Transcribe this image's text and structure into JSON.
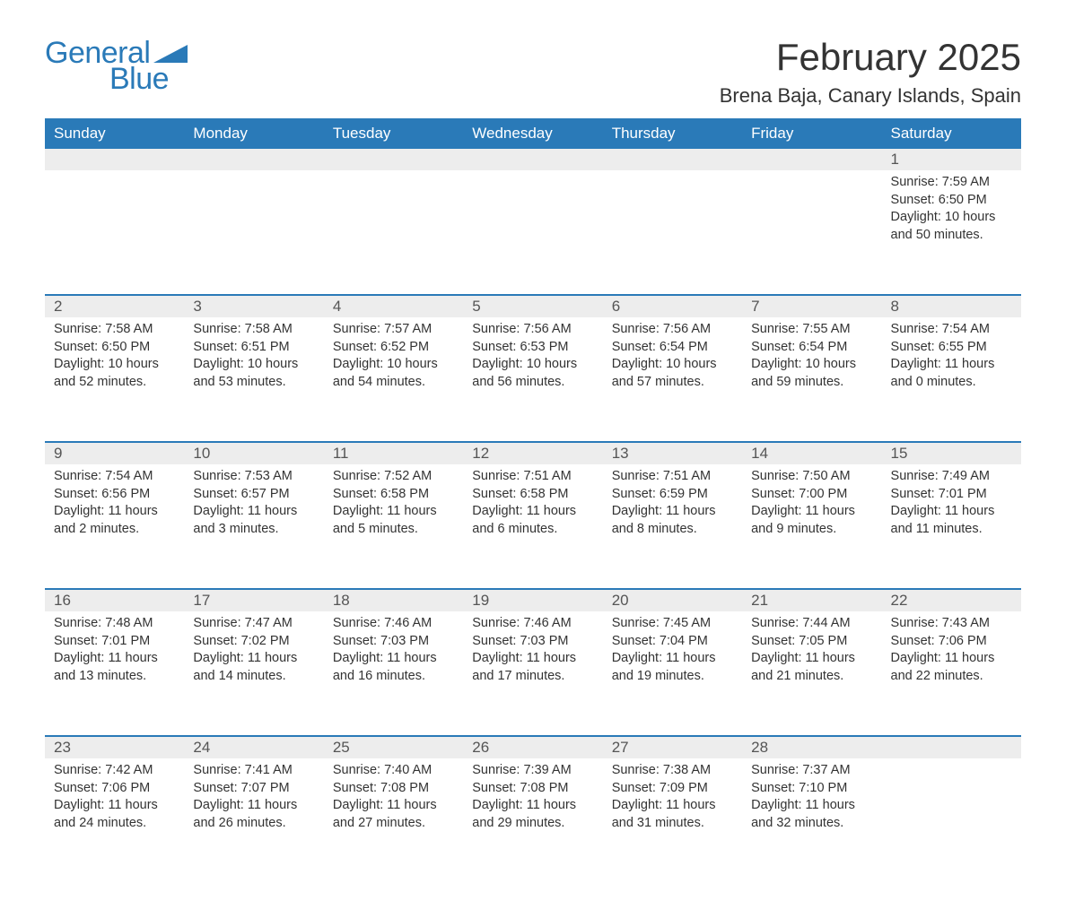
{
  "logo": {
    "word1": "General",
    "word2": "Blue",
    "wedge_color": "#2a7ab8"
  },
  "header": {
    "month_title": "February 2025",
    "location": "Brena Baja, Canary Islands, Spain"
  },
  "colors": {
    "header_bg": "#2a7ab8",
    "header_text": "#ffffff",
    "daynum_bg": "#ededed",
    "body_text": "#333333",
    "page_bg": "#ffffff"
  },
  "fonts": {
    "title_size_pt": 32,
    "location_size_pt": 17,
    "header_cell_size_pt": 13,
    "body_size_pt": 11
  },
  "weekdays": [
    "Sunday",
    "Monday",
    "Tuesday",
    "Wednesday",
    "Thursday",
    "Friday",
    "Saturday"
  ],
  "weeks": [
    [
      null,
      null,
      null,
      null,
      null,
      null,
      {
        "n": "1",
        "sunrise": "Sunrise: 7:59 AM",
        "sunset": "Sunset: 6:50 PM",
        "daylight": "Daylight: 10 hours and 50 minutes."
      }
    ],
    [
      {
        "n": "2",
        "sunrise": "Sunrise: 7:58 AM",
        "sunset": "Sunset: 6:50 PM",
        "daylight": "Daylight: 10 hours and 52 minutes."
      },
      {
        "n": "3",
        "sunrise": "Sunrise: 7:58 AM",
        "sunset": "Sunset: 6:51 PM",
        "daylight": "Daylight: 10 hours and 53 minutes."
      },
      {
        "n": "4",
        "sunrise": "Sunrise: 7:57 AM",
        "sunset": "Sunset: 6:52 PM",
        "daylight": "Daylight: 10 hours and 54 minutes."
      },
      {
        "n": "5",
        "sunrise": "Sunrise: 7:56 AM",
        "sunset": "Sunset: 6:53 PM",
        "daylight": "Daylight: 10 hours and 56 minutes."
      },
      {
        "n": "6",
        "sunrise": "Sunrise: 7:56 AM",
        "sunset": "Sunset: 6:54 PM",
        "daylight": "Daylight: 10 hours and 57 minutes."
      },
      {
        "n": "7",
        "sunrise": "Sunrise: 7:55 AM",
        "sunset": "Sunset: 6:54 PM",
        "daylight": "Daylight: 10 hours and 59 minutes."
      },
      {
        "n": "8",
        "sunrise": "Sunrise: 7:54 AM",
        "sunset": "Sunset: 6:55 PM",
        "daylight": "Daylight: 11 hours and 0 minutes."
      }
    ],
    [
      {
        "n": "9",
        "sunrise": "Sunrise: 7:54 AM",
        "sunset": "Sunset: 6:56 PM",
        "daylight": "Daylight: 11 hours and 2 minutes."
      },
      {
        "n": "10",
        "sunrise": "Sunrise: 7:53 AM",
        "sunset": "Sunset: 6:57 PM",
        "daylight": "Daylight: 11 hours and 3 minutes."
      },
      {
        "n": "11",
        "sunrise": "Sunrise: 7:52 AM",
        "sunset": "Sunset: 6:58 PM",
        "daylight": "Daylight: 11 hours and 5 minutes."
      },
      {
        "n": "12",
        "sunrise": "Sunrise: 7:51 AM",
        "sunset": "Sunset: 6:58 PM",
        "daylight": "Daylight: 11 hours and 6 minutes."
      },
      {
        "n": "13",
        "sunrise": "Sunrise: 7:51 AM",
        "sunset": "Sunset: 6:59 PM",
        "daylight": "Daylight: 11 hours and 8 minutes."
      },
      {
        "n": "14",
        "sunrise": "Sunrise: 7:50 AM",
        "sunset": "Sunset: 7:00 PM",
        "daylight": "Daylight: 11 hours and 9 minutes."
      },
      {
        "n": "15",
        "sunrise": "Sunrise: 7:49 AM",
        "sunset": "Sunset: 7:01 PM",
        "daylight": "Daylight: 11 hours and 11 minutes."
      }
    ],
    [
      {
        "n": "16",
        "sunrise": "Sunrise: 7:48 AM",
        "sunset": "Sunset: 7:01 PM",
        "daylight": "Daylight: 11 hours and 13 minutes."
      },
      {
        "n": "17",
        "sunrise": "Sunrise: 7:47 AM",
        "sunset": "Sunset: 7:02 PM",
        "daylight": "Daylight: 11 hours and 14 minutes."
      },
      {
        "n": "18",
        "sunrise": "Sunrise: 7:46 AM",
        "sunset": "Sunset: 7:03 PM",
        "daylight": "Daylight: 11 hours and 16 minutes."
      },
      {
        "n": "19",
        "sunrise": "Sunrise: 7:46 AM",
        "sunset": "Sunset: 7:03 PM",
        "daylight": "Daylight: 11 hours and 17 minutes."
      },
      {
        "n": "20",
        "sunrise": "Sunrise: 7:45 AM",
        "sunset": "Sunset: 7:04 PM",
        "daylight": "Daylight: 11 hours and 19 minutes."
      },
      {
        "n": "21",
        "sunrise": "Sunrise: 7:44 AM",
        "sunset": "Sunset: 7:05 PM",
        "daylight": "Daylight: 11 hours and 21 minutes."
      },
      {
        "n": "22",
        "sunrise": "Sunrise: 7:43 AM",
        "sunset": "Sunset: 7:06 PM",
        "daylight": "Daylight: 11 hours and 22 minutes."
      }
    ],
    [
      {
        "n": "23",
        "sunrise": "Sunrise: 7:42 AM",
        "sunset": "Sunset: 7:06 PM",
        "daylight": "Daylight: 11 hours and 24 minutes."
      },
      {
        "n": "24",
        "sunrise": "Sunrise: 7:41 AM",
        "sunset": "Sunset: 7:07 PM",
        "daylight": "Daylight: 11 hours and 26 minutes."
      },
      {
        "n": "25",
        "sunrise": "Sunrise: 7:40 AM",
        "sunset": "Sunset: 7:08 PM",
        "daylight": "Daylight: 11 hours and 27 minutes."
      },
      {
        "n": "26",
        "sunrise": "Sunrise: 7:39 AM",
        "sunset": "Sunset: 7:08 PM",
        "daylight": "Daylight: 11 hours and 29 minutes."
      },
      {
        "n": "27",
        "sunrise": "Sunrise: 7:38 AM",
        "sunset": "Sunset: 7:09 PM",
        "daylight": "Daylight: 11 hours and 31 minutes."
      },
      {
        "n": "28",
        "sunrise": "Sunrise: 7:37 AM",
        "sunset": "Sunset: 7:10 PM",
        "daylight": "Daylight: 11 hours and 32 minutes."
      },
      null
    ]
  ]
}
